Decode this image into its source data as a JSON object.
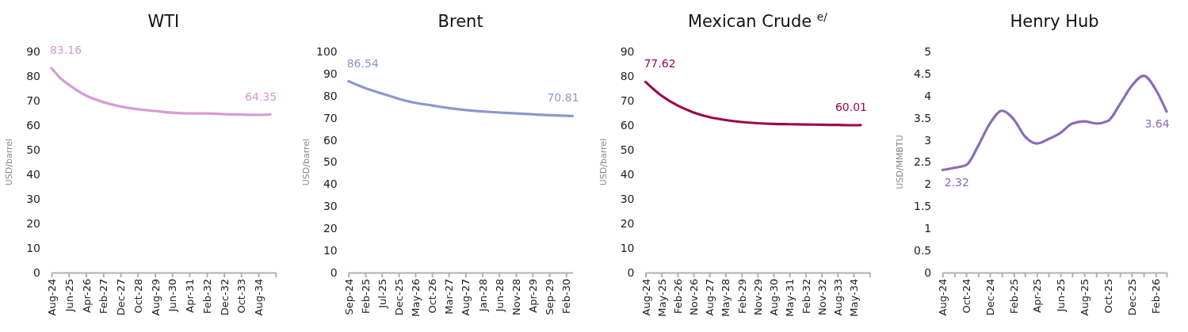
{
  "chart_data": [
    {
      "type": "line",
      "title": "WTI",
      "ylabel": "USD/barrel",
      "ylim": [
        0,
        90
      ],
      "yticks": [
        0,
        10,
        20,
        30,
        40,
        50,
        60,
        70,
        80,
        90
      ],
      "xlim": [
        "2024-08",
        "2035-06"
      ],
      "xticks": [
        {
          "value": "2024-08",
          "label": "Aug-24"
        },
        {
          "value": "2025-06",
          "label": "Jun-25"
        },
        {
          "value": "2026-04",
          "label": "Apr-26"
        },
        {
          "value": "2027-02",
          "label": "Feb-27"
        },
        {
          "value": "2027-12",
          "label": "Dec-27"
        },
        {
          "value": "2028-10",
          "label": "Oct-28"
        },
        {
          "value": "2029-08",
          "label": "Aug-29"
        },
        {
          "value": "2030-06",
          "label": "Jun-30"
        },
        {
          "value": "2031-04",
          "label": "Apr-31"
        },
        {
          "value": "2032-02",
          "label": "Feb-32"
        },
        {
          "value": "2032-12",
          "label": "Dec-32"
        },
        {
          "value": "2033-10",
          "label": "Oct-33"
        },
        {
          "value": "2034-08",
          "label": "Aug-34"
        },
        {
          "value": "2035-06",
          "label": null
        }
      ],
      "x": [
        "2024-08",
        "2024-10",
        "2025-01",
        "2025-06",
        "2026-04",
        "2027-02",
        "2027-12",
        "2028-10",
        "2029-08",
        "2030-06",
        "2031-04",
        "2032-02",
        "2032-12",
        "2033-10",
        "2034-08",
        "2035-03"
      ],
      "series": [
        {
          "color": "#d59cd4",
          "values": [
            83.16,
            81.6,
            79.2,
            76.5,
            72.1,
            69.4,
            67.6,
            66.5,
            65.8,
            65.1,
            64.8,
            64.8,
            64.5,
            64.3,
            64.2,
            64.35
          ],
          "value_labels": [
            "83.16",
            null,
            null,
            null,
            null,
            null,
            null,
            null,
            null,
            null,
            null,
            null,
            null,
            null,
            null,
            "64.35"
          ]
        }
      ]
    },
    {
      "type": "line",
      "title": "Brent",
      "ylabel": "USD/barrel",
      "ylim": [
        0,
        100
      ],
      "yticks": [
        0,
        10,
        20,
        30,
        40,
        50,
        60,
        70,
        80,
        90,
        100
      ],
      "xlim": [
        "2024-09",
        "2030-04"
      ],
      "xticks": [
        {
          "value": "2024-09",
          "label": "Sep-24"
        },
        {
          "value": "2025-02",
          "label": "Feb-25"
        },
        {
          "value": "2025-07",
          "label": "Jul-25"
        },
        {
          "value": "2025-12",
          "label": "Dec-25"
        },
        {
          "value": "2026-05",
          "label": "May-26"
        },
        {
          "value": "2026-10",
          "label": "Oct-26"
        },
        {
          "value": "2027-03",
          "label": "Mar-27"
        },
        {
          "value": "2027-08",
          "label": "Aug-27"
        },
        {
          "value": "2028-01",
          "label": "Jan-28"
        },
        {
          "value": "2028-06",
          "label": "Jun-28"
        },
        {
          "value": "2028-11",
          "label": "Nov-28"
        },
        {
          "value": "2029-04",
          "label": "Apr-29"
        },
        {
          "value": "2029-09",
          "label": "Sep-29"
        },
        {
          "value": "2030-02",
          "label": "Feb-30"
        }
      ],
      "x": [
        "2024-09",
        "2025-02",
        "2025-07",
        "2025-12",
        "2026-05",
        "2026-10",
        "2027-03",
        "2027-08",
        "2028-01",
        "2028-06",
        "2028-11",
        "2029-04",
        "2029-09",
        "2030-02",
        "2030-04"
      ],
      "series": [
        {
          "color": "#8e97cc",
          "values": [
            86.54,
            83.4,
            81.0,
            78.6,
            76.8,
            75.6,
            74.4,
            73.5,
            72.9,
            72.4,
            72.0,
            71.6,
            71.2,
            70.9,
            70.81
          ],
          "value_labels": [
            "86.54",
            null,
            null,
            null,
            null,
            null,
            null,
            null,
            null,
            null,
            null,
            null,
            null,
            null,
            "70.81"
          ]
        }
      ]
    },
    {
      "type": "line",
      "title": "Mexican Crude $^{e/}$",
      "ylabel": "USD/barrel",
      "ylim": [
        0,
        90
      ],
      "yticks": [
        0,
        10,
        20,
        30,
        40,
        50,
        60,
        70,
        80,
        90
      ],
      "xlim": [
        "2024-08",
        "2035-02"
      ],
      "xticks": [
        {
          "value": "2024-08",
          "label": "Aug-24"
        },
        {
          "value": "2025-05",
          "label": "May-25"
        },
        {
          "value": "2026-02",
          "label": "Feb-26"
        },
        {
          "value": "2026-11",
          "label": "Nov-26"
        },
        {
          "value": "2027-08",
          "label": "Aug-27"
        },
        {
          "value": "2028-05",
          "label": "May-28"
        },
        {
          "value": "2029-02",
          "label": "Feb-29"
        },
        {
          "value": "2029-11",
          "label": "Nov-29"
        },
        {
          "value": "2030-08",
          "label": "Aug-30"
        },
        {
          "value": "2031-05",
          "label": "May-31"
        },
        {
          "value": "2032-02",
          "label": "Feb-32"
        },
        {
          "value": "2032-11",
          "label": "Nov-32"
        },
        {
          "value": "2033-08",
          "label": "Aug-33"
        },
        {
          "value": "2034-05",
          "label": "May-34"
        },
        {
          "value": "2035-02",
          "label": null
        }
      ],
      "x": [
        "2024-08",
        "2025-05",
        "2026-02",
        "2026-11",
        "2027-08",
        "2028-05",
        "2029-02",
        "2029-11",
        "2030-08",
        "2031-05",
        "2032-02",
        "2032-11",
        "2033-08",
        "2034-05",
        "2034-09"
      ],
      "series": [
        {
          "color": "#9b0a4b",
          "values": [
            77.62,
            72.0,
            68.0,
            65.2,
            63.3,
            62.1,
            61.3,
            60.8,
            60.5,
            60.4,
            60.3,
            60.2,
            60.1,
            60.0,
            60.01
          ],
          "value_labels": [
            "77.62",
            null,
            null,
            null,
            null,
            null,
            null,
            null,
            null,
            null,
            null,
            null,
            null,
            null,
            "60.01"
          ]
        }
      ]
    },
    {
      "type": "line",
      "title": "Henry Hub",
      "ylabel": "USD/MMBTU",
      "ylim": [
        0,
        5
      ],
      "yticks": [
        0,
        0.5,
        1,
        1.5,
        2,
        2.5,
        3,
        3.5,
        4,
        4.5,
        5
      ],
      "xlim": [
        "2024-08",
        "2026-03"
      ],
      "xticks": [
        {
          "value": "2024-08",
          "label": "Aug-24"
        },
        {
          "value": "2024-09",
          "label": null
        },
        {
          "value": "2024-10",
          "label": "Oct-24"
        },
        {
          "value": "2024-11",
          "label": null
        },
        {
          "value": "2024-12",
          "label": "Dec-24"
        },
        {
          "value": "2025-01",
          "label": null
        },
        {
          "value": "2025-02",
          "label": "Feb-25"
        },
        {
          "value": "2025-03",
          "label": null
        },
        {
          "value": "2025-04",
          "label": "Apr-25"
        },
        {
          "value": "2025-05",
          "label": null
        },
        {
          "value": "2025-06",
          "label": "Jun-25"
        },
        {
          "value": "2025-07",
          "label": null
        },
        {
          "value": "2025-08",
          "label": "Aug-25"
        },
        {
          "value": "2025-09",
          "label": null
        },
        {
          "value": "2025-10",
          "label": "Oct-25"
        },
        {
          "value": "2025-11",
          "label": null
        },
        {
          "value": "2025-12",
          "label": "Dec-25"
        },
        {
          "value": "2026-01",
          "label": null
        },
        {
          "value": "2026-02",
          "label": "Feb-26"
        },
        {
          "value": "2026-03",
          "label": null
        }
      ],
      "x": [
        "2024-08",
        "2024-09",
        "2024-10",
        "2024-11",
        "2024-12",
        "2025-01",
        "2025-02",
        "2025-03",
        "2025-04",
        "2025-05",
        "2025-06",
        "2025-07",
        "2025-08",
        "2025-09",
        "2025-10",
        "2025-11",
        "2025-12",
        "2026-01",
        "2026-02",
        "2026-03"
      ],
      "series": [
        {
          "color": "#8c6bb8",
          "values": [
            2.32,
            2.37,
            2.43,
            2.87,
            3.37,
            3.66,
            3.46,
            3.08,
            2.92,
            3.02,
            3.16,
            3.37,
            3.42,
            3.37,
            3.43,
            3.81,
            4.22,
            4.45,
            4.14,
            3.64
          ],
          "value_labels": [
            "2.32",
            null,
            null,
            null,
            null,
            null,
            null,
            null,
            null,
            null,
            null,
            null,
            null,
            null,
            null,
            null,
            null,
            null,
            null,
            "3.64"
          ]
        }
      ]
    }
  ]
}
